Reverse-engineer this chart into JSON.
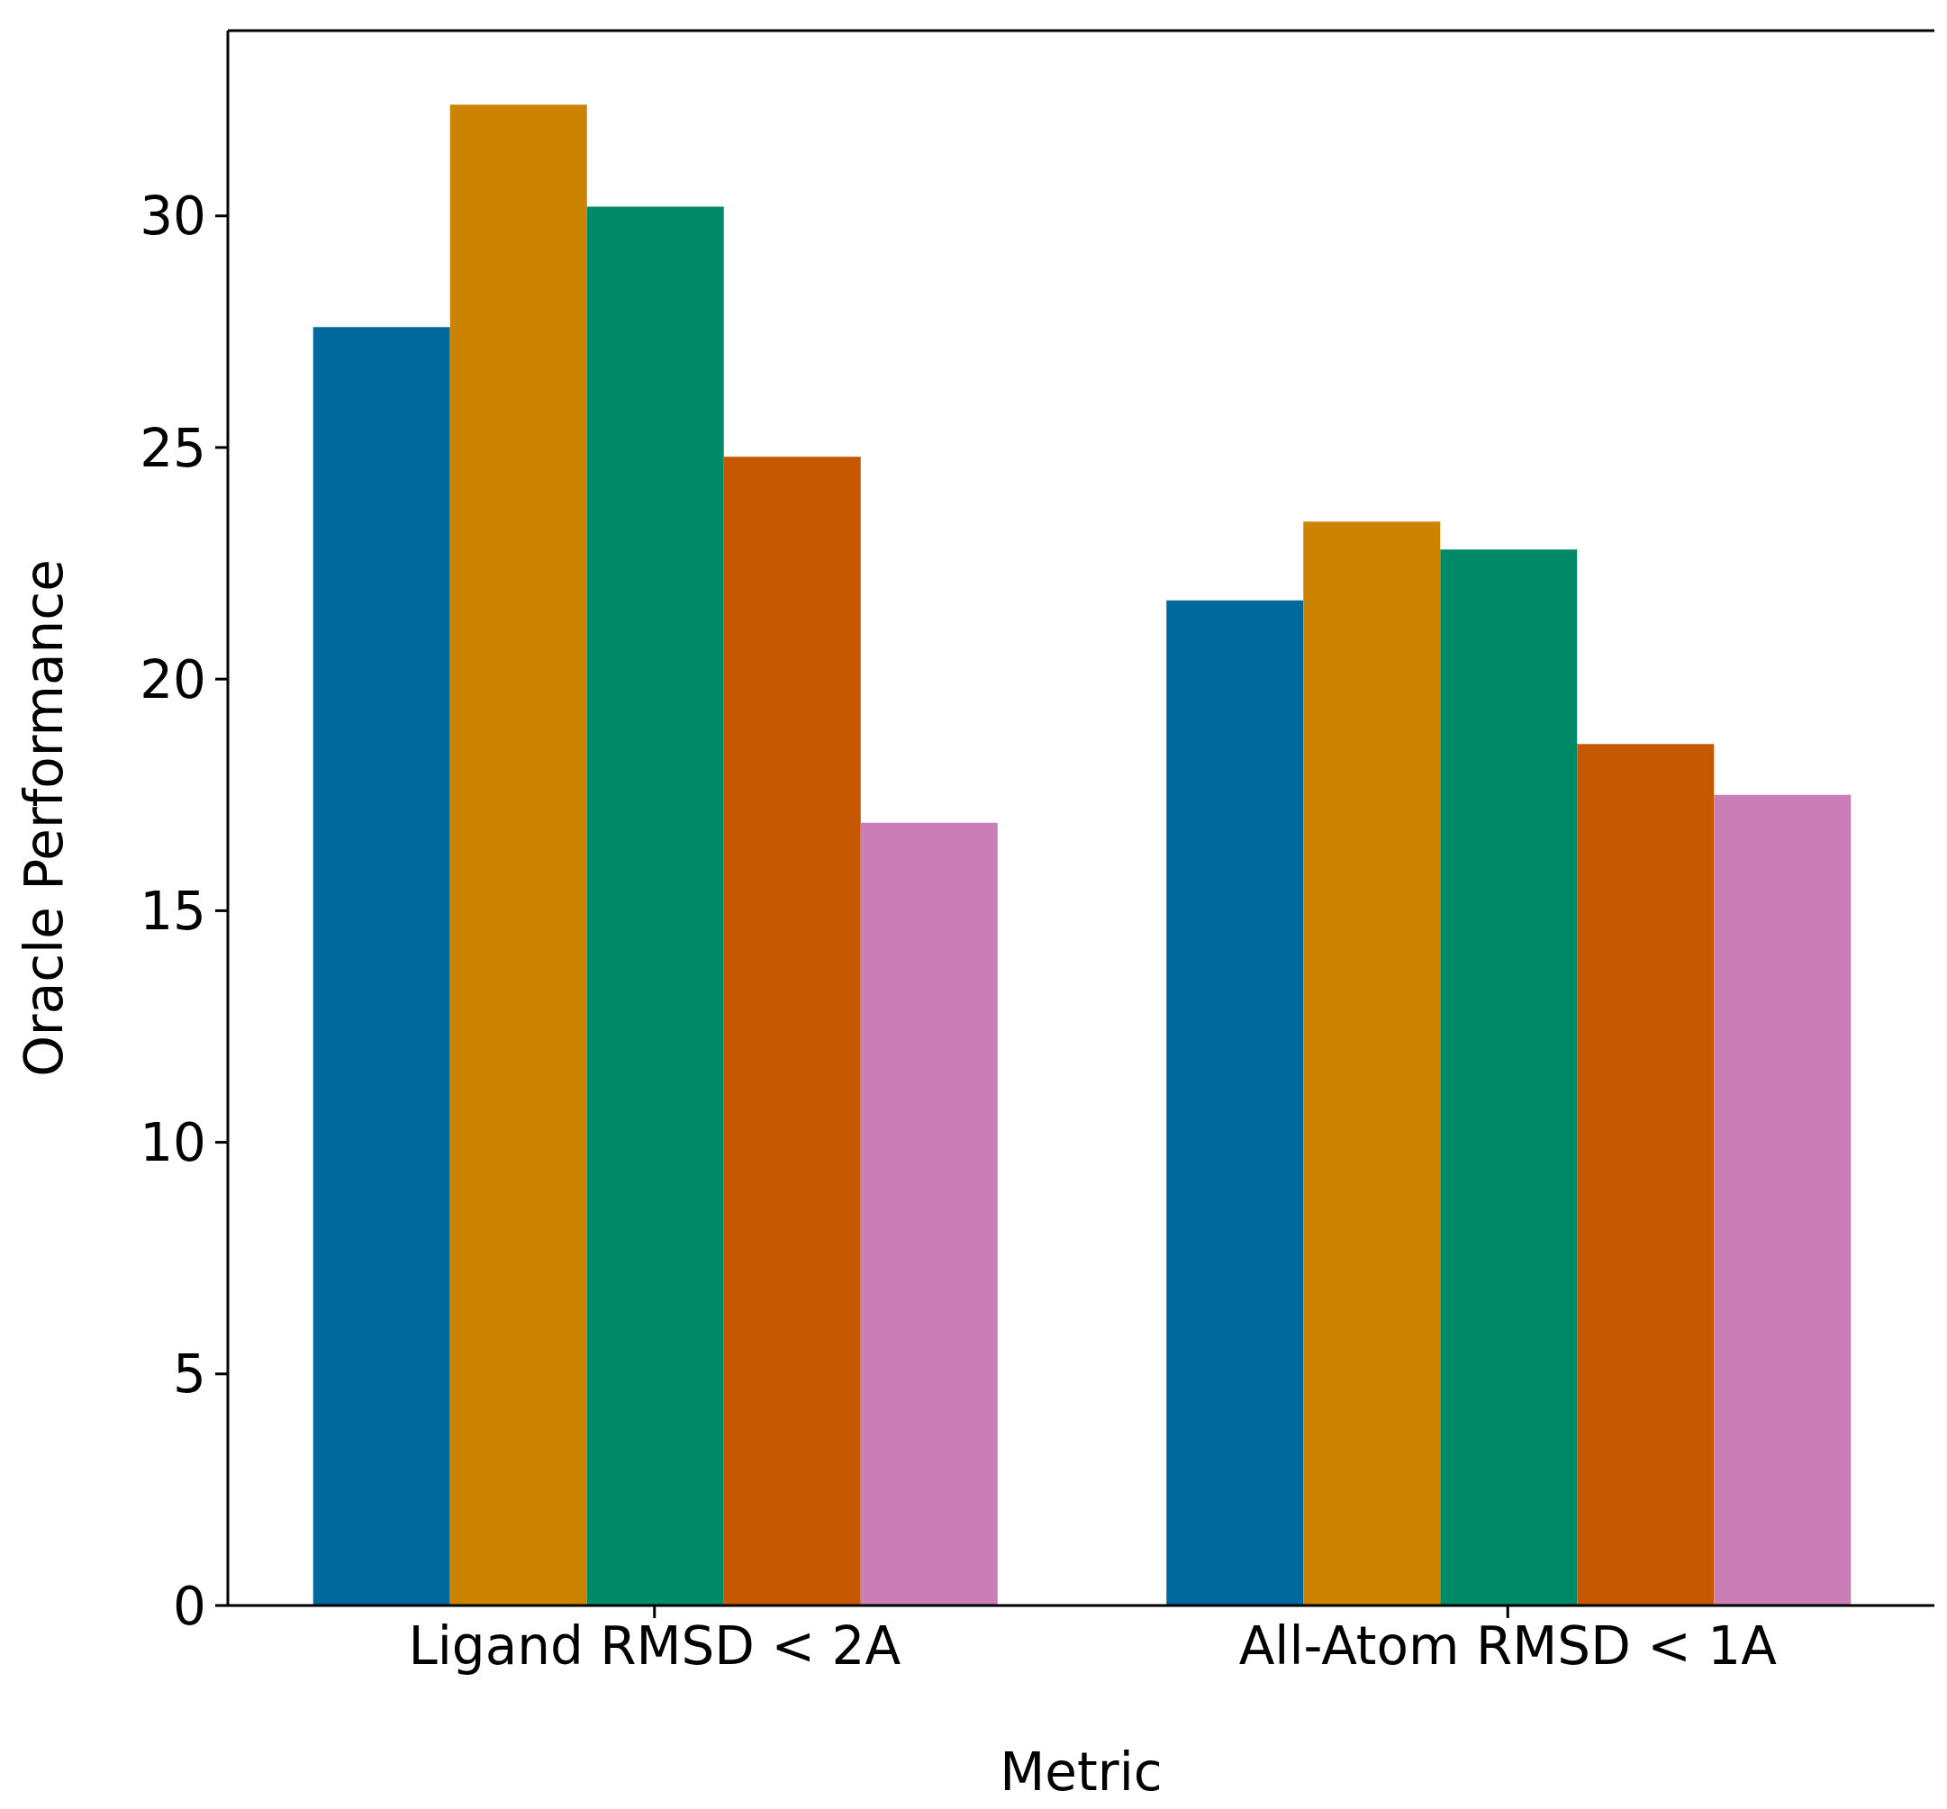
{
  "chart_data": {
    "type": "bar",
    "xlabel": "Metric",
    "ylabel": "Oracle Performance",
    "categories": [
      "Ligand RMSD < 2A",
      "All-Atom RMSD < 1A"
    ],
    "series": [
      {
        "color": "#006a9e",
        "values": [
          27.6,
          21.7
        ]
      },
      {
        "color": "#cc8400",
        "values": [
          32.4,
          23.4
        ]
      },
      {
        "color": "#008a68",
        "values": [
          30.2,
          22.8
        ]
      },
      {
        "color": "#c55800",
        "values": [
          24.8,
          18.6
        ]
      },
      {
        "color": "#c97fb5",
        "values": [
          16.9,
          17.5
        ]
      }
    ],
    "ylim": [
      0,
      34
    ],
    "yticks": [
      0,
      5,
      10,
      15,
      20,
      25,
      30
    ],
    "grid": false,
    "legend": false
  }
}
